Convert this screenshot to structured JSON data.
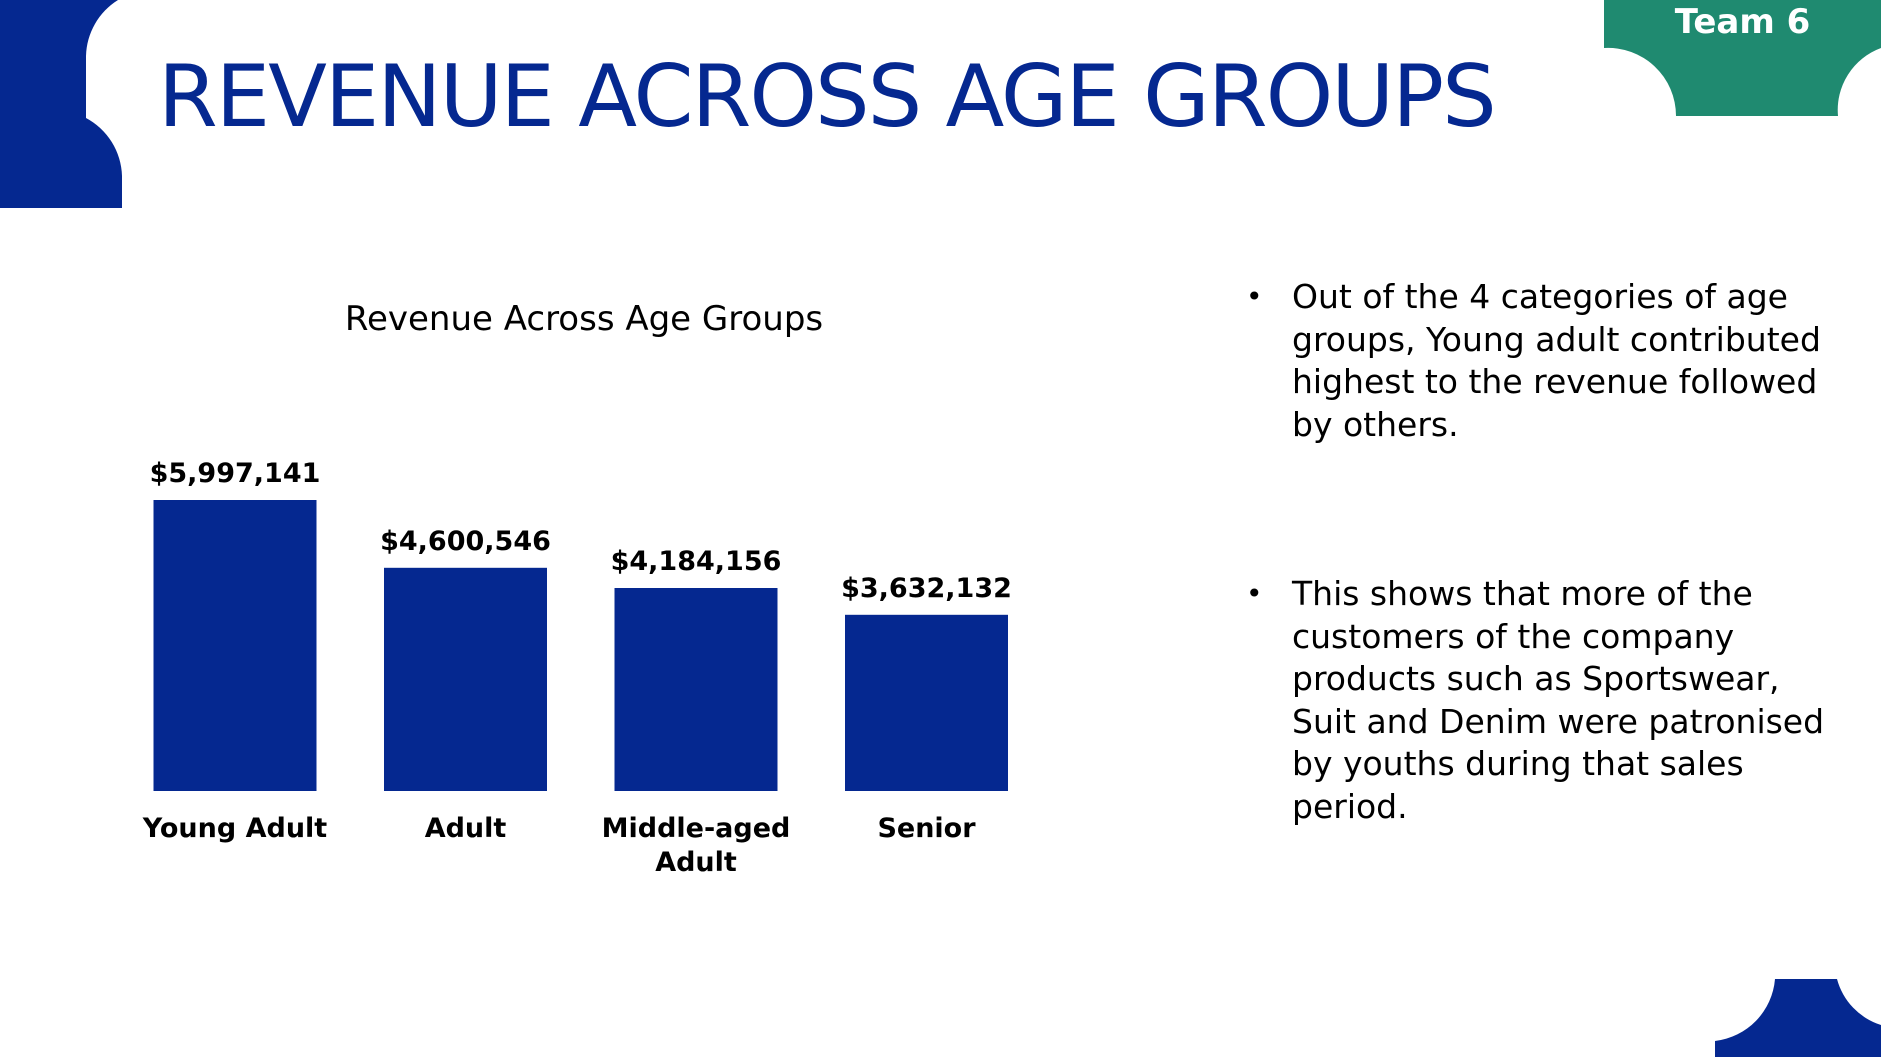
{
  "slide": {
    "title": "REVENUE ACROSS AGE GROUPS",
    "team_label": "Team 6",
    "colors": {
      "brand_blue": "#052890",
      "team_green": "#1f8a70",
      "text": "#000000"
    },
    "bullets": [
      {
        "text": "Out of the 4 categories of age groups, Young adult contributed highest to the revenue followed by others."
      },
      {
        "text": "This shows that more of the customers of the company products such as Sportswear, Suit and Denim were patronised by youths during that sales period."
      }
    ]
  },
  "chart_data": {
    "type": "bar",
    "title": "Revenue Across Age Groups",
    "categories": [
      "Young Adult",
      "Adult",
      "Middle-aged Adult",
      "Senior"
    ],
    "values": [
      5997141,
      4600546,
      4184156,
      3632132
    ],
    "data_labels": [
      "$5,997,141",
      "$4,600,546",
      "$4,184,156",
      "$3,632,132"
    ],
    "ylim": [
      0,
      6000000
    ],
    "xlabel": "",
    "ylabel": "",
    "grid": false,
    "legend": "none",
    "bar_color": "#052890"
  }
}
